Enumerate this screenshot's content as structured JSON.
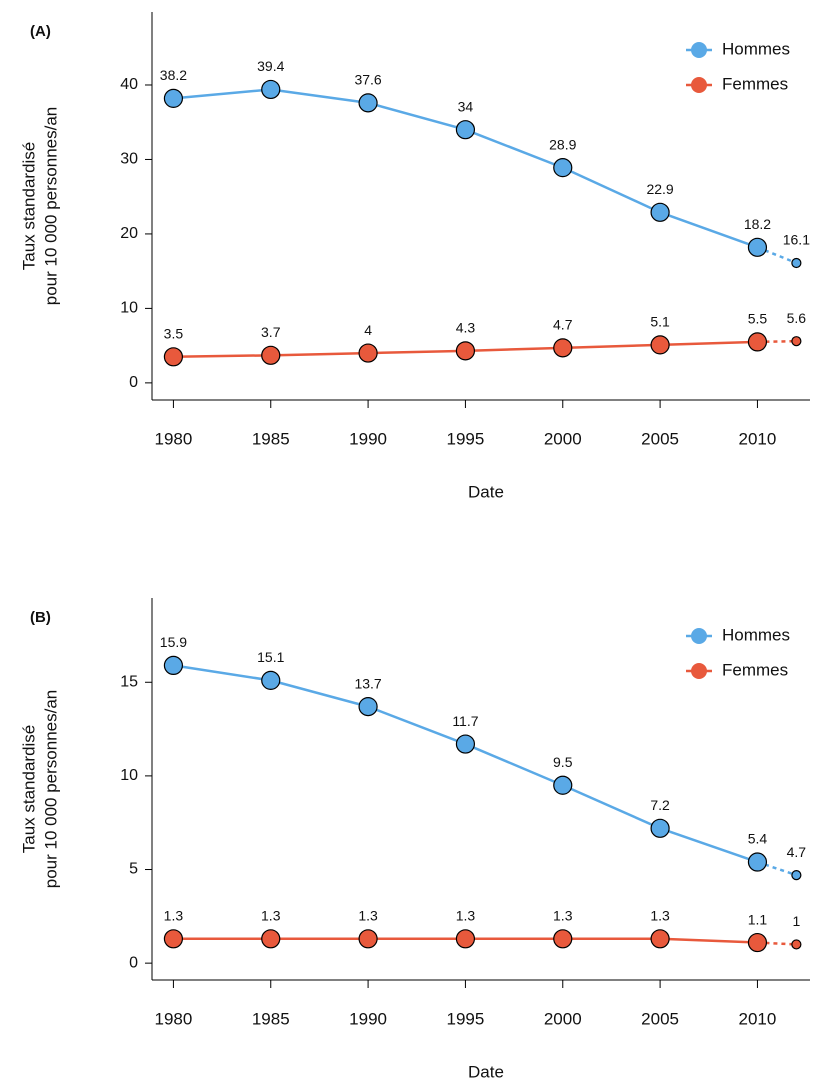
{
  "chart_data": [
    {
      "type": "line",
      "panel_label": "(A)",
      "xlabel": "Date",
      "ylabel": [
        "Taux standardisé",
        "pour 10 000 personnes/an"
      ],
      "x": [
        1980,
        1985,
        1990,
        1995,
        2000,
        2005,
        2010,
        2012
      ],
      "xlim": [
        1978.9,
        2012.7
      ],
      "xticks": [
        1980,
        1985,
        1990,
        1995,
        2000,
        2005,
        2010
      ],
      "ylim": [
        -2.3,
        49.8
      ],
      "yticks": [
        0,
        10,
        20,
        30,
        40
      ],
      "legend": "top-right",
      "dashed_last_segment": true,
      "series": [
        {
          "name": "Hommes",
          "color": "#5aa9e6",
          "values": [
            38.2,
            39.4,
            37.6,
            34,
            28.9,
            22.9,
            18.2,
            16.1
          ]
        },
        {
          "name": "Femmes",
          "color": "#e8593c",
          "values": [
            3.5,
            3.7,
            4,
            4.3,
            4.7,
            5.1,
            5.5,
            5.6
          ]
        }
      ]
    },
    {
      "type": "line",
      "panel_label": "(B)",
      "xlabel": "Date",
      "ylabel": [
        "Taux standardisé",
        "pour 10 000 personnes/an"
      ],
      "x": [
        1980,
        1985,
        1990,
        1995,
        2000,
        2005,
        2010,
        2012
      ],
      "xlim": [
        1978.9,
        2012.7
      ],
      "xticks": [
        1980,
        1985,
        1990,
        1995,
        2000,
        2005,
        2010
      ],
      "ylim": [
        -0.9,
        19.5
      ],
      "yticks": [
        0,
        5,
        10,
        15
      ],
      "legend": "top-right",
      "dashed_last_segment": true,
      "series": [
        {
          "name": "Hommes",
          "color": "#5aa9e6",
          "values": [
            15.9,
            15.1,
            13.7,
            11.7,
            9.5,
            7.2,
            5.4,
            4.7
          ]
        },
        {
          "name": "Femmes",
          "color": "#e8593c",
          "values": [
            1.3,
            1.3,
            1.3,
            1.3,
            1.3,
            1.3,
            1.1,
            1
          ]
        }
      ]
    }
  ]
}
